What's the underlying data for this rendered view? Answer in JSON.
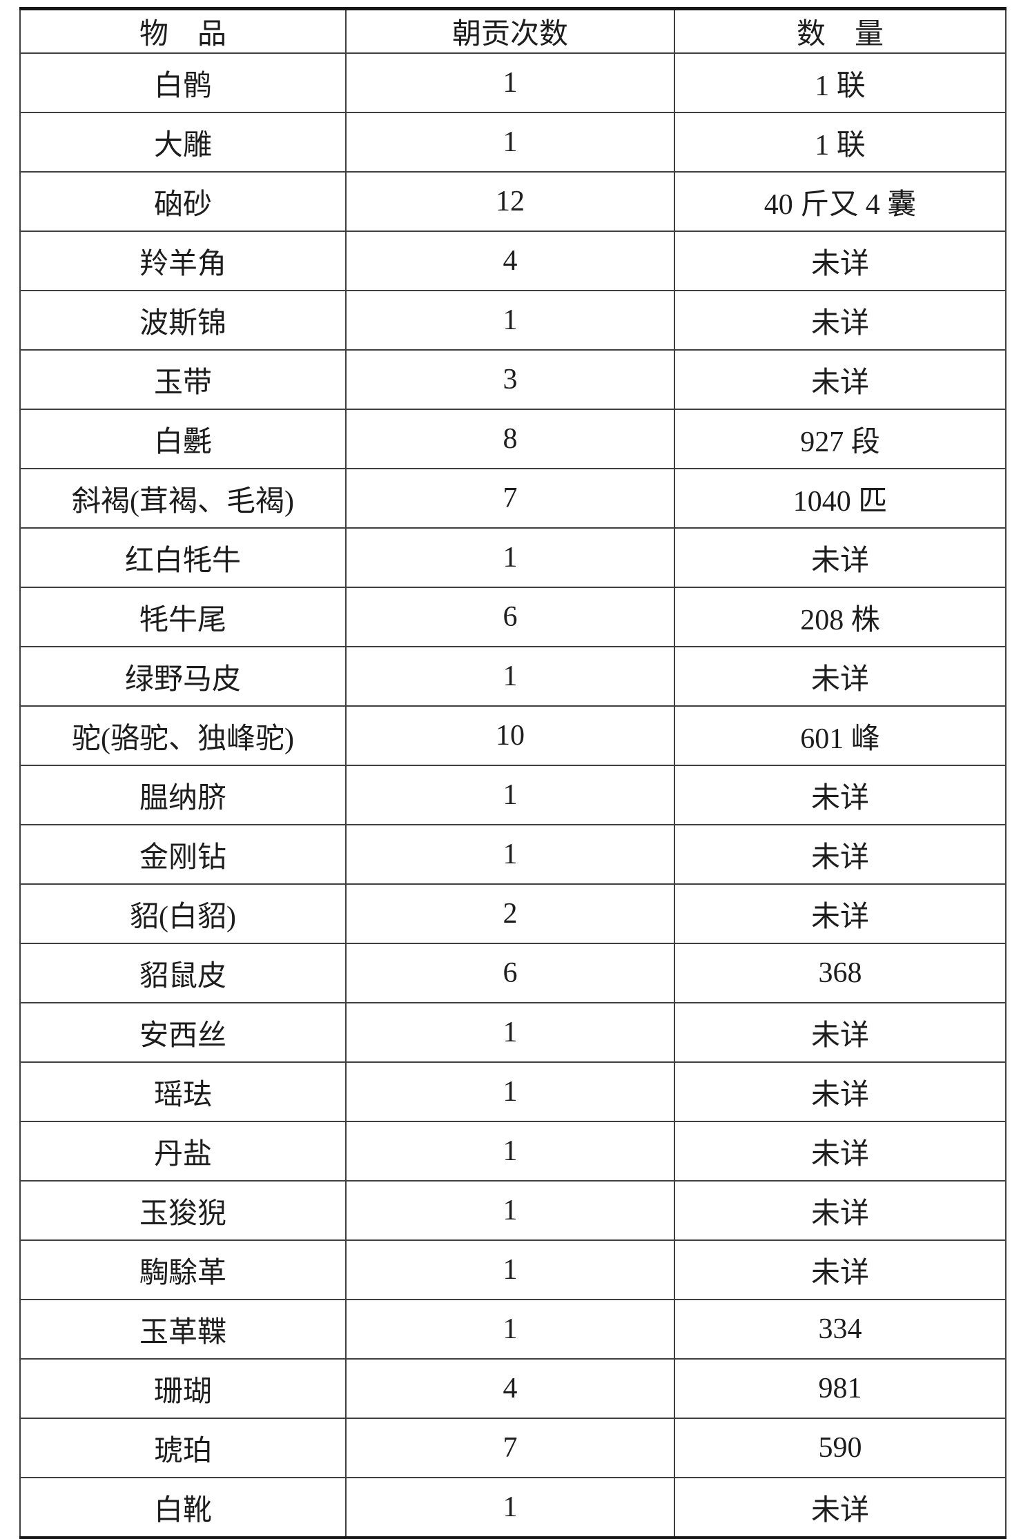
{
  "table": {
    "columns": [
      {
        "key": "item",
        "label": "物　品"
      },
      {
        "key": "times",
        "label": "朝贡次数"
      },
      {
        "key": "quantity",
        "label": "数　量"
      }
    ],
    "rows": [
      {
        "item": "白鹘",
        "times": "1",
        "quantity": "1 联"
      },
      {
        "item": "大雕",
        "times": "1",
        "quantity": "1 联"
      },
      {
        "item": "硇砂",
        "times": "12",
        "quantity": "40 斤又 4 囊"
      },
      {
        "item": "羚羊角",
        "times": "4",
        "quantity": "未详"
      },
      {
        "item": "波斯锦",
        "times": "1",
        "quantity": "未详"
      },
      {
        "item": "玉带",
        "times": "3",
        "quantity": "未详"
      },
      {
        "item": "白氎",
        "times": "8",
        "quantity": "927 段"
      },
      {
        "item": "斜褐(茸褐、毛褐)",
        "times": "7",
        "quantity": "1040 匹"
      },
      {
        "item": "红白牦牛",
        "times": "1",
        "quantity": "未详"
      },
      {
        "item": "牦牛尾",
        "times": "6",
        "quantity": "208 株"
      },
      {
        "item": "绿野马皮",
        "times": "1",
        "quantity": "未详"
      },
      {
        "item": "驼(骆驼、独峰驼)",
        "times": "10",
        "quantity": "601 峰"
      },
      {
        "item": "腽纳脐",
        "times": "1",
        "quantity": "未详"
      },
      {
        "item": "金刚钻",
        "times": "1",
        "quantity": "未详"
      },
      {
        "item": "貂(白貂)",
        "times": "2",
        "quantity": "未详"
      },
      {
        "item": "貂鼠皮",
        "times": "6",
        "quantity": "368"
      },
      {
        "item": "安西丝",
        "times": "1",
        "quantity": "未详"
      },
      {
        "item": "瑶珐",
        "times": "1",
        "quantity": "未详"
      },
      {
        "item": "丹盐",
        "times": "1",
        "quantity": "未详"
      },
      {
        "item": "玉狻猊",
        "times": "1",
        "quantity": "未详"
      },
      {
        "item": "騊駼革",
        "times": "1",
        "quantity": "未详"
      },
      {
        "item": "玉革鞢",
        "times": "1",
        "quantity": "334"
      },
      {
        "item": "珊瑚",
        "times": "4",
        "quantity": "981"
      },
      {
        "item": "琥珀",
        "times": "7",
        "quantity": "590"
      },
      {
        "item": "白靴",
        "times": "1",
        "quantity": "未详"
      }
    ]
  },
  "colors": {
    "background": "#ffffff",
    "text": "#1d1d1d",
    "grid_line": "#3f3f3f",
    "outer_border": "#161616"
  }
}
